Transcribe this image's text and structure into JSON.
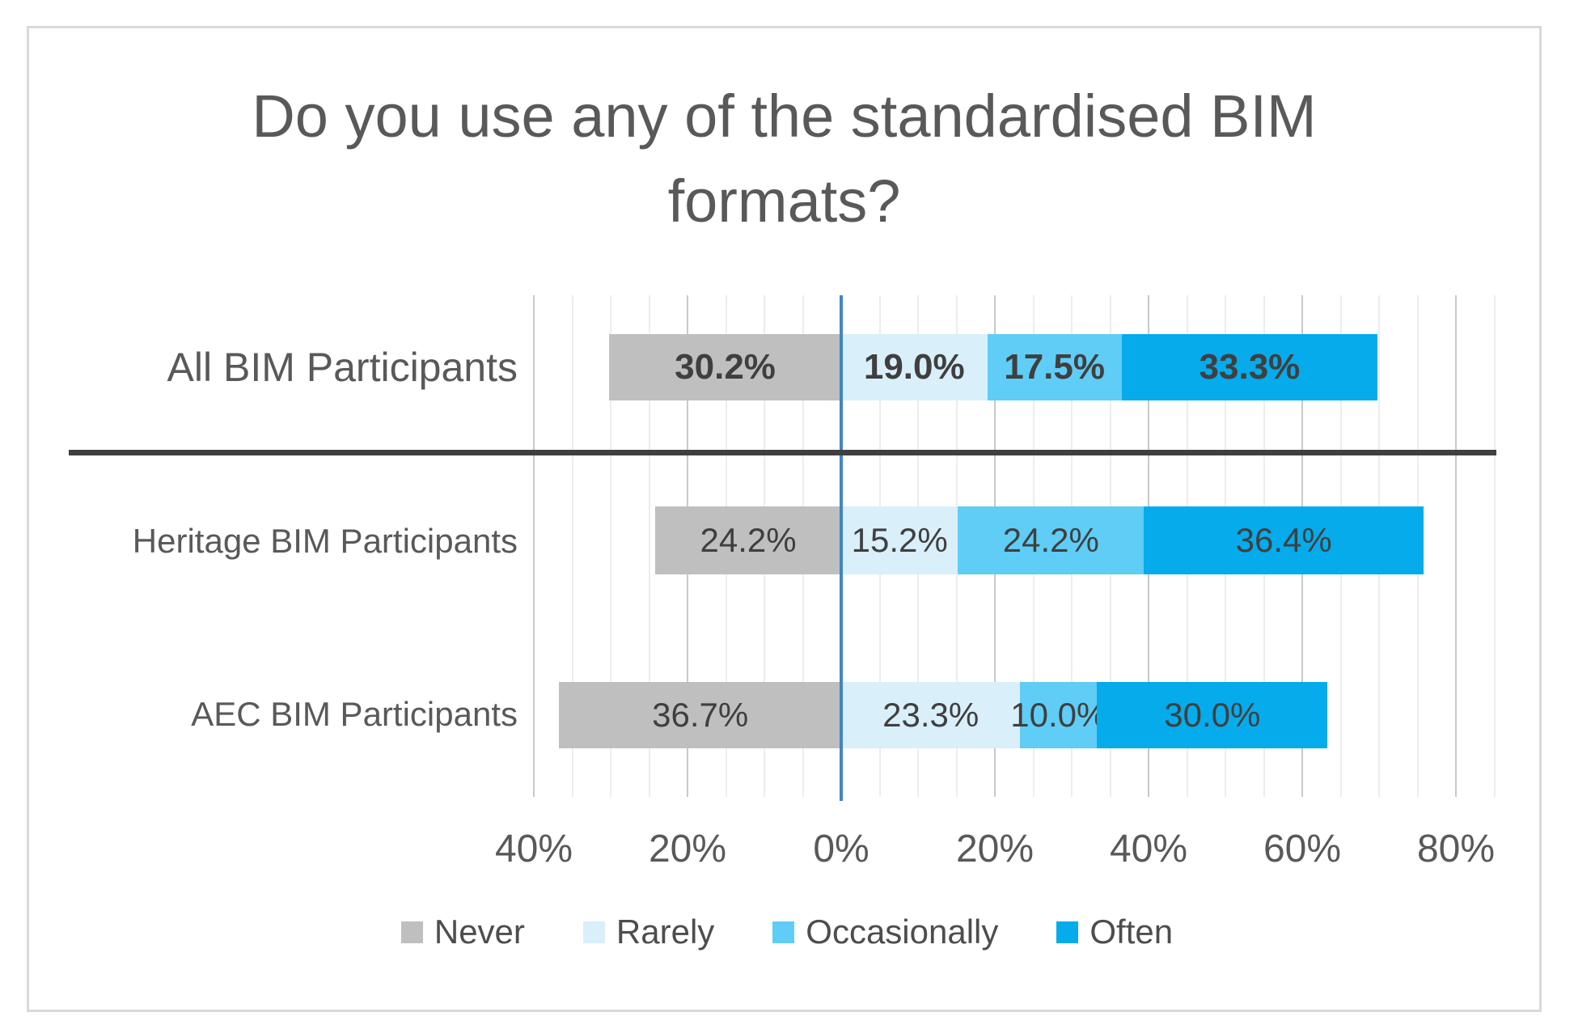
{
  "title_lines": [
    "Do you use any of the standardised BIM",
    "formats?"
  ],
  "colors": {
    "never": "#BFBFBF",
    "rarely": "#D9EFFA",
    "occasionally": "#5FCDF6",
    "often": "#05ABEB",
    "zero_axis_line": "#4285C5",
    "separator_line": "#3F3F3F",
    "gridline_minor": "#EDEDED",
    "gridline_major": "#C9C9C9",
    "text_gray": "#595959",
    "value_label_text": "#3F3F3F",
    "frame_border": "#D9D9D9"
  },
  "chart_data": {
    "type": "bar",
    "orientation": "horizontal-diverging-stacked",
    "title": "Do you use any of the standardised BIM formats?",
    "xlabel": "",
    "ylabel": "",
    "categories": [
      "All BIM Participants",
      "Heritage BIM Participants",
      "AEC BIM Participants"
    ],
    "label_bold": [
      true,
      false,
      false
    ],
    "series": [
      {
        "name": "Never",
        "color": "#BFBFBF",
        "direction": "left",
        "values": [
          30.2,
          24.2,
          36.7
        ],
        "labels": [
          "30.2%",
          "24.2%",
          "36.7%"
        ]
      },
      {
        "name": "Rarely",
        "color": "#D9EFFA",
        "direction": "right",
        "values": [
          19.0,
          15.2,
          23.3
        ],
        "labels": [
          "19.0%",
          "15.2%",
          "23.3%"
        ]
      },
      {
        "name": "Occasionally",
        "color": "#5FCDF6",
        "direction": "right",
        "values": [
          17.5,
          24.2,
          10.0
        ],
        "labels": [
          "17.5%",
          "24.2%",
          "10.0%"
        ]
      },
      {
        "name": "Often",
        "color": "#05ABEB",
        "direction": "right",
        "values": [
          33.3,
          36.4,
          30.0
        ],
        "labels": [
          "33.3%",
          "36.4%",
          "30.0%"
        ]
      }
    ],
    "x_axis": {
      "tick_labels": [
        "40%",
        "20%",
        "0%",
        "20%",
        "40%",
        "60%",
        "80%"
      ],
      "tick_values": [
        -40,
        -20,
        0,
        20,
        40,
        60,
        80
      ],
      "range": [
        -40,
        85
      ],
      "minor_step": 5,
      "grid": true
    },
    "legend": [
      "Never",
      "Rarely",
      "Occasionally",
      "Often"
    ],
    "legend_position": "bottom"
  }
}
